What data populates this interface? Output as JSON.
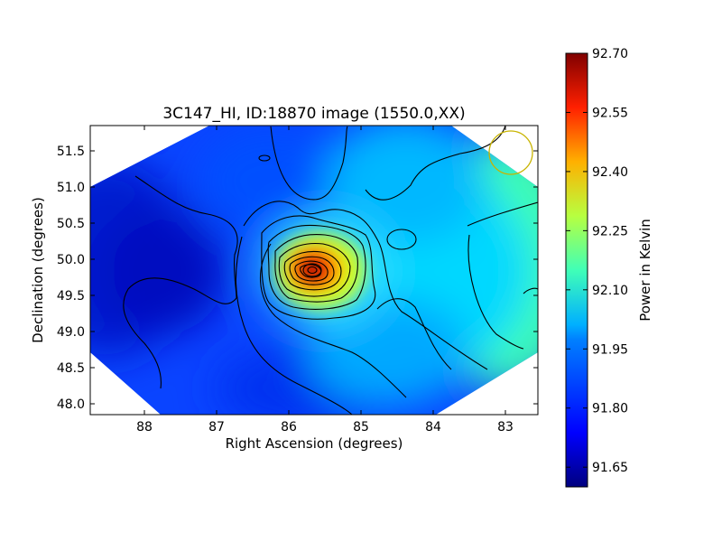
{
  "chart_data": {
    "type": "heatmap",
    "title": "3C147_HI, ID:18870 image (1550.0,XX)",
    "xlabel": "Right Ascension (degrees)",
    "ylabel": "Declination (degrees)",
    "xlim": [
      88.75,
      82.55
    ],
    "ylim": [
      47.85,
      51.85
    ],
    "x_ticks": [
      {
        "value": 88,
        "label": "88"
      },
      {
        "value": 87,
        "label": "87"
      },
      {
        "value": 86,
        "label": "86"
      },
      {
        "value": 85,
        "label": "85"
      },
      {
        "value": 84,
        "label": "84"
      },
      {
        "value": 83,
        "label": "83"
      }
    ],
    "y_ticks": [
      {
        "value": 48.0,
        "label": "48.0"
      },
      {
        "value": 48.5,
        "label": "48.5"
      },
      {
        "value": 49.0,
        "label": "49.0"
      },
      {
        "value": 49.5,
        "label": "49.5"
      },
      {
        "value": 50.0,
        "label": "50.0"
      },
      {
        "value": 50.5,
        "label": "50.5"
      },
      {
        "value": 51.0,
        "label": "51.0"
      },
      {
        "value": 51.5,
        "label": "51.5"
      }
    ],
    "colorbar": {
      "label": "Power in Kelvin",
      "range": [
        91.6,
        92.7
      ],
      "ticks": [
        {
          "value": 92.7,
          "label": "92.70"
        },
        {
          "value": 92.55,
          "label": "92.55"
        },
        {
          "value": 92.4,
          "label": "92.40"
        },
        {
          "value": 92.25,
          "label": "92.25"
        },
        {
          "value": 92.1,
          "label": "92.10"
        },
        {
          "value": 91.95,
          "label": "91.95"
        },
        {
          "value": 91.8,
          "label": "91.80"
        },
        {
          "value": 91.65,
          "label": "91.65"
        }
      ],
      "colormap": "jet"
    },
    "peak": {
      "ra": 85.65,
      "dec": 49.85,
      "value": 92.7
    },
    "field_shape": "hexagon",
    "beam_color": "#c8b400",
    "contour_color": "#000000"
  }
}
